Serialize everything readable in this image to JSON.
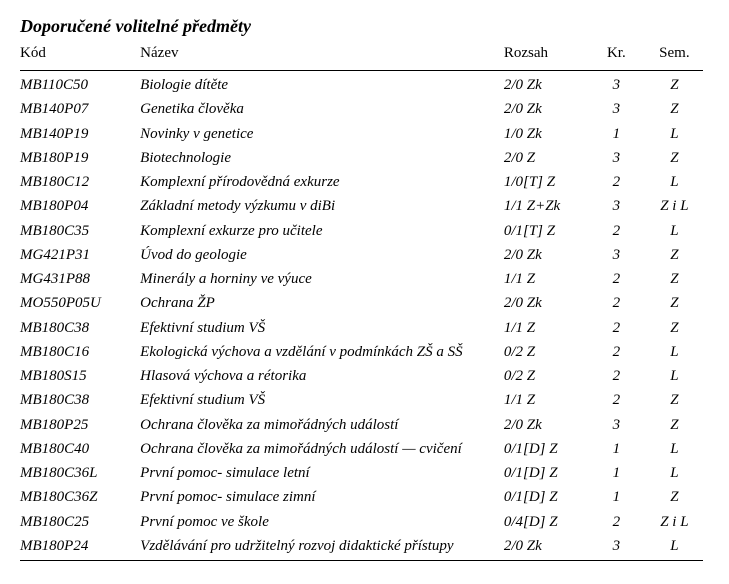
{
  "title": "Doporučené volitelné předměty",
  "headers": {
    "kod": "Kód",
    "nazev": "Název",
    "rozsah": "Rozsah",
    "kr": "Kr.",
    "sem": "Sem."
  },
  "rows": [
    {
      "kod": "MB110C50",
      "nazev": "Biologie dítěte",
      "rozsah": "2/0 Zk",
      "kr": "3",
      "sem": "Z"
    },
    {
      "kod": "MB140P07",
      "nazev": "Genetika člověka",
      "rozsah": "2/0 Zk",
      "kr": "3",
      "sem": "Z"
    },
    {
      "kod": "MB140P19",
      "nazev": "Novinky v genetice",
      "rozsah": "1/0 Zk",
      "kr": "1",
      "sem": "L"
    },
    {
      "kod": "MB180P19",
      "nazev": "Biotechnologie",
      "rozsah": "2/0 Z",
      "kr": "3",
      "sem": "Z"
    },
    {
      "kod": "MB180C12",
      "nazev": "Komplexní přírodovědná exkurze",
      "rozsah": "1/0[T] Z",
      "kr": "2",
      "sem": "L"
    },
    {
      "kod": "MB180P04",
      "nazev": "Základní metody výzkumu v diBi",
      "rozsah": "1/1 Z+Zk",
      "kr": "3",
      "sem": "Z i L"
    },
    {
      "kod": "MB180C35",
      "nazev": "Komplexní exkurze pro učitele",
      "rozsah": "0/1[T] Z",
      "kr": "2",
      "sem": "L"
    },
    {
      "kod": "MG421P31",
      "nazev": "Úvod do geologie",
      "rozsah": "2/0 Zk",
      "kr": "3",
      "sem": "Z"
    },
    {
      "kod": "MG431P88",
      "nazev": "Minerály a horniny ve výuce",
      "rozsah": "1/1 Z",
      "kr": "2",
      "sem": "Z"
    },
    {
      "kod": "MO550P05U",
      "nazev": "Ochrana ŽP",
      "rozsah": "2/0 Zk",
      "kr": "2",
      "sem": "Z"
    },
    {
      "kod": "MB180C38",
      "nazev": "Efektivní studium VŠ",
      "rozsah": "1/1 Z",
      "kr": "2",
      "sem": "Z"
    },
    {
      "kod": "MB180C16",
      "nazev": "Ekologická výchova a vzdělání v podmínkách ZŠ a SŠ",
      "rozsah": "0/2 Z",
      "kr": "2",
      "sem": "L"
    },
    {
      "kod": "MB180S15",
      "nazev": "Hlasová výchova a rétorika",
      "rozsah": "0/2 Z",
      "kr": "2",
      "sem": "L"
    },
    {
      "kod": "MB180C38",
      "nazev": "Efektivní studium VŠ",
      "rozsah": "1/1 Z",
      "kr": "2",
      "sem": "Z"
    },
    {
      "kod": "MB180P25",
      "nazev": "Ochrana člověka za mimořádných událostí",
      "rozsah": "2/0 Zk",
      "kr": "3",
      "sem": "Z"
    },
    {
      "kod": "MB180C40",
      "nazev": "Ochrana člověka za mimořádných událostí — cvičení",
      "rozsah": "0/1[D] Z",
      "kr": "1",
      "sem": "L"
    },
    {
      "kod": "MB180C36L",
      "nazev": "První pomoc- simulace letní",
      "rozsah": "0/1[D] Z",
      "kr": "1",
      "sem": "L"
    },
    {
      "kod": "MB180C36Z",
      "nazev": "První pomoc- simulace zimní",
      "rozsah": "0/1[D] Z",
      "kr": "1",
      "sem": "Z"
    },
    {
      "kod": "MB180C25",
      "nazev": "První pomoc ve škole",
      "rozsah": "0/4[D] Z",
      "kr": "2",
      "sem": "Z i L"
    },
    {
      "kod": "MB180P24",
      "nazev": "Vzdělávání pro udržitelný rozvoj didaktické přístupy",
      "rozsah": "2/0 Zk",
      "kr": "3",
      "sem": "L"
    }
  ]
}
